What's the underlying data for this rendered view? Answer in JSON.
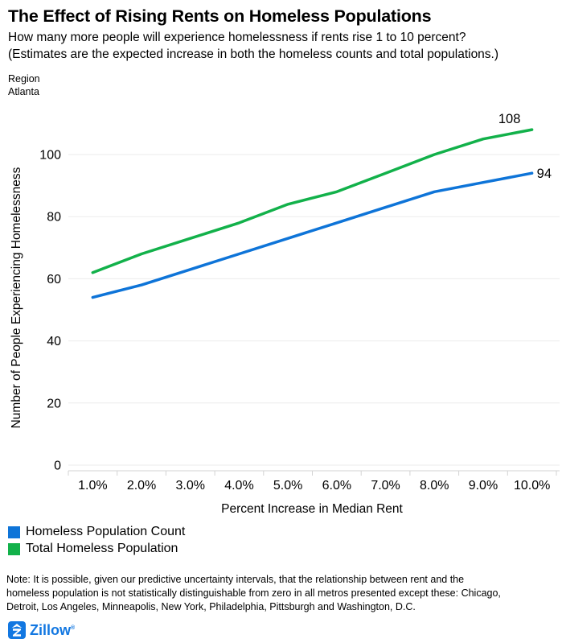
{
  "header": {
    "title": "The Effect of Rising Rents on Homeless Populations",
    "subtitle_line1": "How many more people will experience homelessness if rents rise 1 to 10 percent?",
    "subtitle_line2": "(Estimates are the expected increase in both the homeless counts and total populations.)"
  },
  "region_filter": {
    "label": "Region",
    "value": "Atlanta"
  },
  "chart_data": {
    "type": "line",
    "x": [
      "1.0%",
      "2.0%",
      "3.0%",
      "4.0%",
      "5.0%",
      "6.0%",
      "7.0%",
      "8.0%",
      "9.0%",
      "10.0%"
    ],
    "series": [
      {
        "name": "Homeless Population Count",
        "color": "#0e74d8",
        "values": [
          54,
          58,
          63,
          68,
          73,
          78,
          83,
          88,
          91,
          94
        ],
        "end_label": "94",
        "end_label_placement": "right"
      },
      {
        "name": "Total Homeless Population",
        "color": "#12b14a",
        "values": [
          62,
          68,
          73,
          78,
          84,
          88,
          94,
          100,
          105,
          108
        ],
        "end_label": "108",
        "end_label_placement": "above"
      }
    ],
    "xlabel": "Percent Increase in Median Rent",
    "ylabel": "Number of People Experiencing Homelessness",
    "yticks": [
      0,
      20,
      40,
      60,
      80,
      100
    ],
    "ylim": [
      0,
      116
    ],
    "grid": true,
    "legend_position": "bottom-left",
    "grid_color": "#ebebeb",
    "axis_color": "#d3d3d3",
    "text_color": "#000000"
  },
  "note": {
    "line1": "Note: It is possible, given our predictive uncertainty intervals, that the relationship between rent and the",
    "line2": "homeless population is not statistically distinguishable from zero in all metros presented except these: Chicago,",
    "line3": "Detroit, Los Angeles, Minneapolis, New York, Philadelphia, Pittsburgh and Washington, D.C."
  },
  "footer": {
    "brand": "Zillow",
    "brand_color": "#1277e1",
    "reg_mark": "®"
  }
}
